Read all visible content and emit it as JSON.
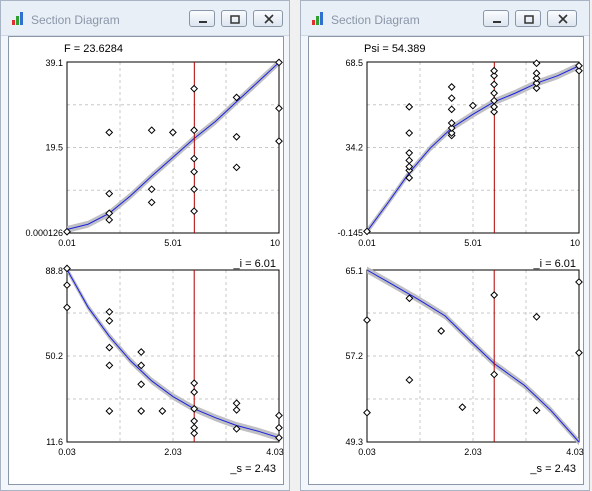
{
  "windows": [
    {
      "title": "Section Diagram",
      "buttons": [
        "minimize",
        "restore",
        "close"
      ],
      "charts": [
        {
          "type": "scatter",
          "readout": "F = 23.6284",
          "xlabel": "_i = 6.01",
          "xlim": [
            0.01,
            10
          ],
          "ylim": [
            0.000126,
            39.1
          ],
          "xticks": [
            "0.01",
            "5.01",
            "10"
          ],
          "yticks": [
            "39.1",
            "19.5",
            "0.000126"
          ],
          "marker_x": 6.01,
          "points": [
            [
              0.01,
              0.3
            ],
            [
              2,
              3
            ],
            [
              2,
              4.5
            ],
            [
              2,
              9
            ],
            [
              2,
              23
            ],
            [
              4,
              7
            ],
            [
              4,
              10
            ],
            [
              4,
              23.5
            ],
            [
              5,
              23
            ],
            [
              6,
              5
            ],
            [
              6,
              10
            ],
            [
              6,
              14
            ],
            [
              6,
              17
            ],
            [
              6,
              23.5
            ],
            [
              6,
              33
            ],
            [
              8,
              15
            ],
            [
              8,
              22
            ],
            [
              8,
              31
            ],
            [
              10,
              21
            ],
            [
              10,
              28.5
            ],
            [
              10,
              39
            ]
          ],
          "fit": [
            [
              0.01,
              0.8
            ],
            [
              1,
              2
            ],
            [
              2,
              4.5
            ],
            [
              3,
              8.5
            ],
            [
              4,
              13
            ],
            [
              5,
              17.3
            ],
            [
              6,
              21.6
            ],
            [
              7,
              25.5
            ],
            [
              8,
              30
            ],
            [
              9,
              34.5
            ],
            [
              10,
              39
            ]
          ]
        },
        {
          "type": "scatter",
          "readout": "",
          "xlabel": "_s = 2.43",
          "xlim": [
            0.03,
            4.03
          ],
          "ylim": [
            11.6,
            88.8
          ],
          "xticks": [
            "0.03",
            "2.03",
            "4.03"
          ],
          "yticks": [
            "88.8",
            "50.2",
            "11.6"
          ],
          "marker_x": 2.43,
          "points": [
            [
              0.03,
              89.5
            ],
            [
              0.03,
              82
            ],
            [
              0.03,
              72
            ],
            [
              0.83,
              70
            ],
            [
              0.83,
              66
            ],
            [
              0.83,
              54
            ],
            [
              0.83,
              46
            ],
            [
              0.83,
              25.5
            ],
            [
              1.43,
              52
            ],
            [
              1.43,
              46
            ],
            [
              1.43,
              37.5
            ],
            [
              1.43,
              25.5
            ],
            [
              1.83,
              25.5
            ],
            [
              2.43,
              38
            ],
            [
              2.43,
              34
            ],
            [
              2.43,
              26.5
            ],
            [
              2.43,
              21
            ],
            [
              2.43,
              18
            ],
            [
              2.43,
              15.5
            ],
            [
              3.23,
              29
            ],
            [
              3.23,
              26
            ],
            [
              3.23,
              17.5
            ],
            [
              4.03,
              23.5
            ],
            [
              4.03,
              18
            ],
            [
              4.03,
              13.5
            ]
          ],
          "fit": [
            [
              0.03,
              89
            ],
            [
              0.43,
              72
            ],
            [
              0.83,
              59
            ],
            [
              1.23,
              48
            ],
            [
              1.63,
              39
            ],
            [
              2.03,
              32
            ],
            [
              2.43,
              26.5
            ],
            [
              2.83,
              22.5
            ],
            [
              3.23,
              19
            ],
            [
              3.63,
              16.5
            ],
            [
              4.03,
              13.5
            ]
          ]
        }
      ]
    },
    {
      "title": "Section Diagram",
      "buttons": [
        "minimize",
        "restore",
        "close"
      ],
      "charts": [
        {
          "type": "scatter",
          "readout": "Psi = 54.389",
          "xlabel": "_i = 6.01",
          "xlim": [
            0.01,
            10
          ],
          "ylim": [
            -0.145,
            68.5
          ],
          "xticks": [
            "0.01",
            "5.01",
            "10"
          ],
          "yticks": [
            "68.5",
            "34.2",
            "-0.145"
          ],
          "marker_x": 6.01,
          "points": [
            [
              0.01,
              0.5
            ],
            [
              2,
              22
            ],
            [
              2,
              25
            ],
            [
              2,
              26.5
            ],
            [
              2,
              29
            ],
            [
              2,
              32
            ],
            [
              2,
              40
            ],
            [
              2,
              50.5
            ],
            [
              4,
              39
            ],
            [
              4,
              40
            ],
            [
              4,
              42
            ],
            [
              4,
              44
            ],
            [
              4,
              49.5
            ],
            [
              4,
              54
            ],
            [
              4,
              58.5
            ],
            [
              5,
              51
            ],
            [
              6,
              48.5
            ],
            [
              6,
              50.5
            ],
            [
              6,
              53
            ],
            [
              6,
              56
            ],
            [
              6,
              59.5
            ],
            [
              6,
              63
            ],
            [
              6,
              65
            ],
            [
              8,
              58
            ],
            [
              8,
              60
            ],
            [
              8,
              62
            ],
            [
              8,
              64
            ],
            [
              8,
              68
            ],
            [
              10,
              65
            ],
            [
              10,
              67
            ]
          ],
          "fit": [
            [
              0.01,
              0.5
            ],
            [
              1,
              12
            ],
            [
              2,
              24
            ],
            [
              3,
              34
            ],
            [
              4,
              42
            ],
            [
              5,
              47.5
            ],
            [
              6,
              52.5
            ],
            [
              7,
              56
            ],
            [
              8,
              60
            ],
            [
              9,
              63
            ],
            [
              10,
              67
            ]
          ]
        },
        {
          "type": "scatter",
          "readout": "",
          "xlabel": "_s = 2.43",
          "xlim": [
            0.03,
            4.03
          ],
          "ylim": [
            49.3,
            65.1
          ],
          "xticks": [
            "0.03",
            "2.03",
            "4.03"
          ],
          "yticks": [
            "65.1",
            "57.2",
            "49.3"
          ],
          "marker_x": 2.43,
          "points": [
            [
              0.03,
              60.5
            ],
            [
              0.03,
              52
            ],
            [
              0.83,
              62.5
            ],
            [
              0.83,
              55
            ],
            [
              1.43,
              59.5
            ],
            [
              1.83,
              52.5
            ],
            [
              2.43,
              62.8
            ],
            [
              2.43,
              55.5
            ],
            [
              3.23,
              60.8
            ],
            [
              3.23,
              52.2
            ],
            [
              4.03,
              64
            ],
            [
              4.03,
              57.5
            ]
          ],
          "fit": [
            [
              0.03,
              65.1
            ],
            [
              0.5,
              63.8
            ],
            [
              1,
              62.4
            ],
            [
              1.5,
              60.9
            ],
            [
              2,
              58.5
            ],
            [
              2.43,
              56.5
            ],
            [
              3,
              54.5
            ],
            [
              3.5,
              52.2
            ],
            [
              4.03,
              49.3
            ]
          ]
        }
      ]
    }
  ],
  "chart_data": [
    {
      "type": "scatter",
      "label": "F = 23.6284",
      "xlabel": "_i = 6.01",
      "xlim": [
        0.01,
        10
      ],
      "ylim": [
        0.000126,
        39.1
      ]
    },
    {
      "type": "scatter",
      "label": "",
      "xlabel": "_s = 2.43",
      "xlim": [
        0.03,
        4.03
      ],
      "ylim": [
        11.6,
        88.8
      ]
    },
    {
      "type": "scatter",
      "label": "Psi = 54.389",
      "xlabel": "_i = 6.01",
      "xlim": [
        0.01,
        10
      ],
      "ylim": [
        -0.145,
        68.5
      ]
    },
    {
      "type": "scatter",
      "label": "",
      "xlabel": "_s = 2.43",
      "xlim": [
        0.03,
        4.03
      ],
      "ylim": [
        49.3,
        65.1
      ]
    }
  ]
}
